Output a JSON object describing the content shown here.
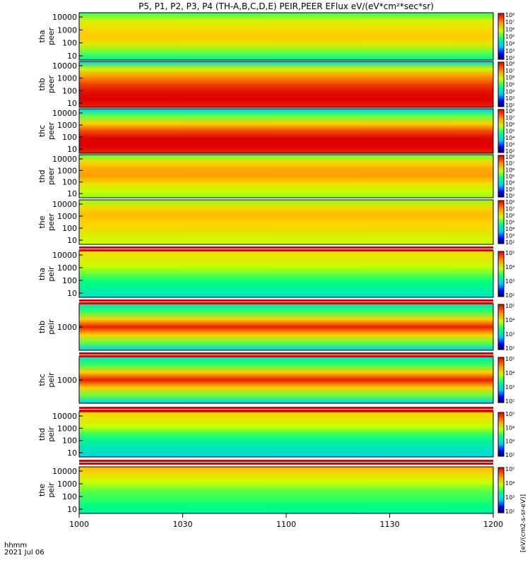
{
  "chart_data": {
    "type": "heatmap",
    "title": "P5, P1, P2, P3, P4 (TH-A,B,C,D,E) PEIR,PEER EFlux eV/(eV*cm²*sec*sr)",
    "colorbar_unit_label": "[eV/(cm2-s-sr-eV)]",
    "colorbar_ticks": [
      "10²",
      "10³",
      "10⁴",
      "10⁵",
      "10⁶",
      "10⁷",
      "10⁸"
    ],
    "time_axis": {
      "label_line1": "hhmm",
      "label_line2": "2021 Jul 06",
      "start": "1000",
      "end": "1200",
      "ticks": [
        "1000",
        "1030",
        "1100",
        "1130",
        "1200"
      ]
    },
    "panels": [
      {
        "probe": "tha",
        "species": "peer",
        "y_ticks": [
          "10000",
          "1000",
          "100",
          "10"
        ]
      },
      {
        "probe": "thb",
        "species": "peer",
        "y_ticks": [
          "10000",
          "1000",
          "100",
          "10"
        ]
      },
      {
        "probe": "thc",
        "species": "peer",
        "y_ticks": [
          "10000",
          "1000",
          "100",
          "10"
        ]
      },
      {
        "probe": "thd",
        "species": "peer",
        "y_ticks": [
          "10000",
          "1000",
          "100",
          "10"
        ]
      },
      {
        "probe": "the",
        "species": "peer",
        "y_ticks": [
          "10000",
          "1000",
          "100",
          "10"
        ]
      },
      {
        "probe": "tha",
        "species": "peir",
        "y_ticks": [
          "10000",
          "1000",
          "100",
          "10"
        ]
      },
      {
        "probe": "thb",
        "species": "peir",
        "y_ticks": [
          "1000"
        ]
      },
      {
        "probe": "thc",
        "species": "peir",
        "y_ticks": [
          "1000"
        ]
      },
      {
        "probe": "thd",
        "species": "peir",
        "y_ticks": [
          "10000",
          "1000",
          "100",
          "10"
        ]
      },
      {
        "probe": "the",
        "species": "peir",
        "y_ticks": [
          "10000",
          "1000",
          "100",
          "10"
        ]
      }
    ]
  }
}
